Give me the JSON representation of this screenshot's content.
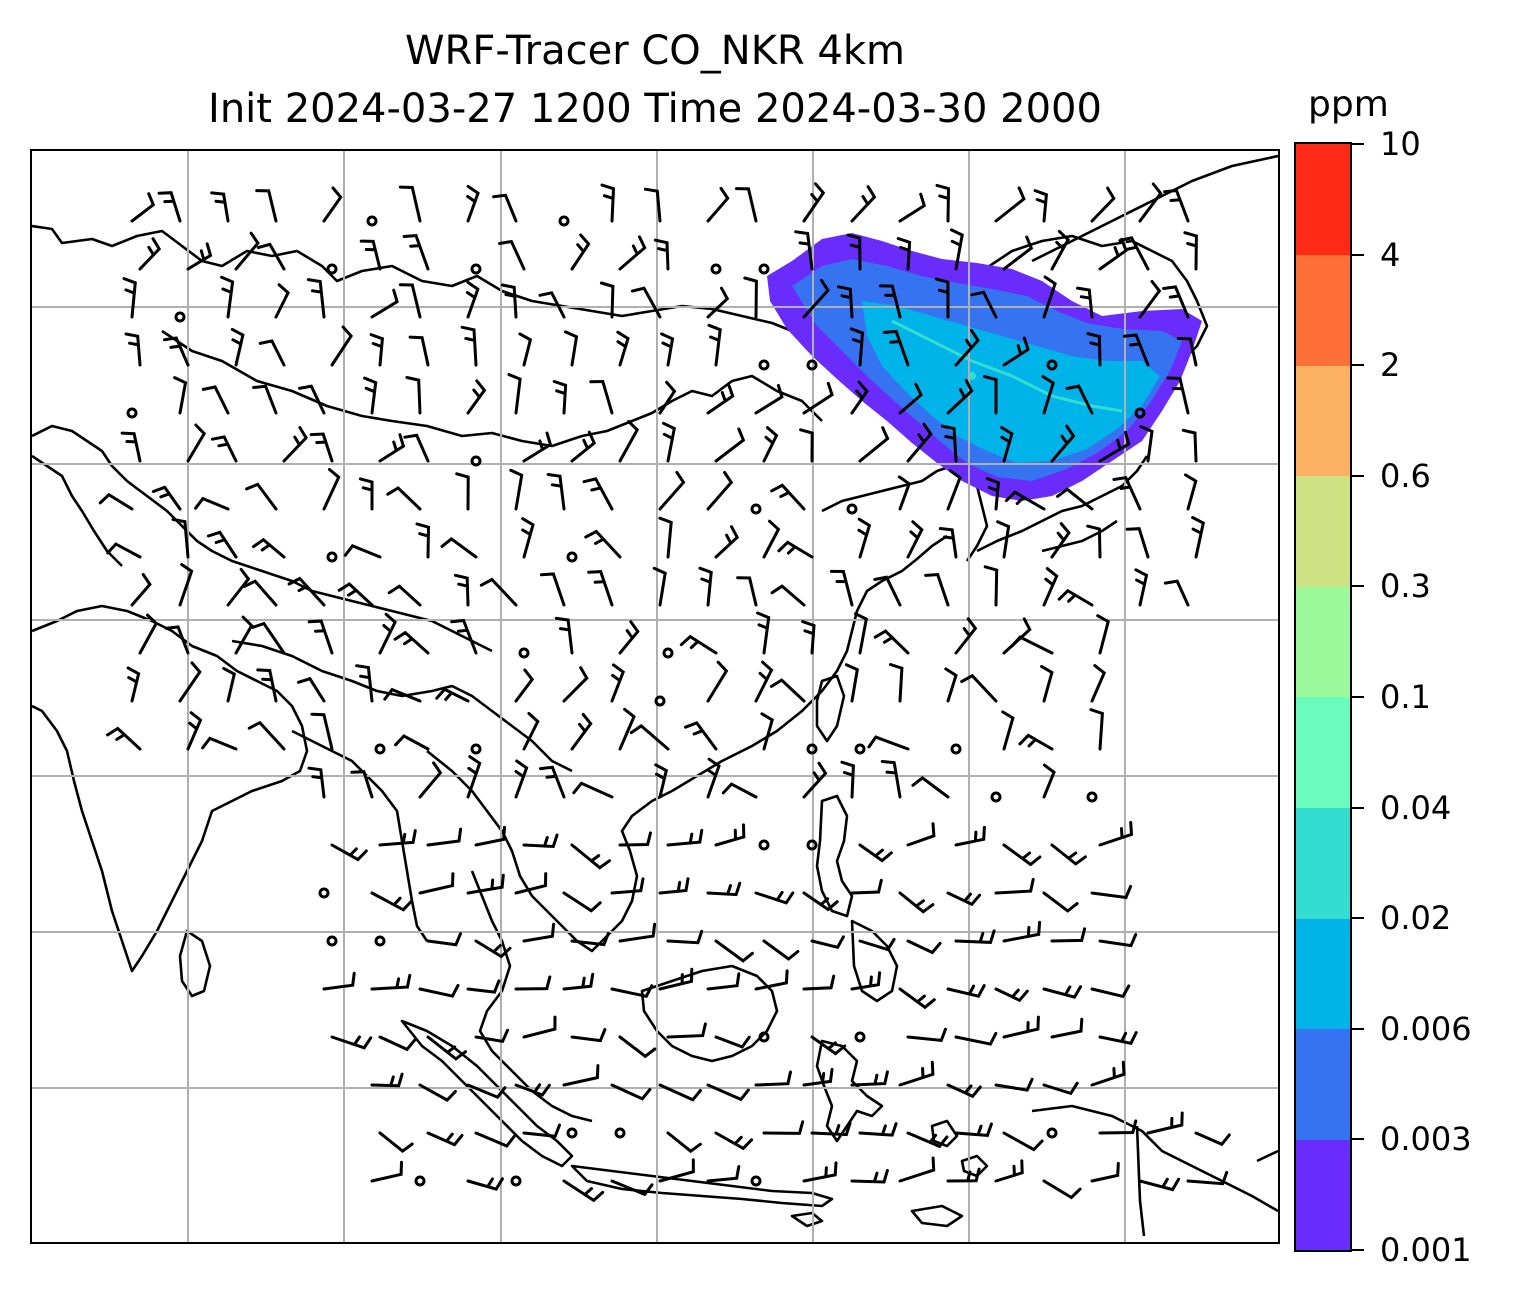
{
  "header": {
    "title_line1": "WRF-Tracer CO_NKR 4km",
    "title_line2": "Init 2024-03-27 1200 Time 2024-03-30 2000"
  },
  "colorbar": {
    "unit": "ppm",
    "levels": [
      "0.001",
      "0.003",
      "0.006",
      "0.02",
      "0.04",
      "0.1",
      "0.3",
      "0.6",
      "2",
      "4",
      "10"
    ],
    "colors": [
      "#6a2cfb",
      "#3573f0",
      "#00b4ea",
      "#33ded0",
      "#6cfbbe",
      "#9cfa9c",
      "#cfe283",
      "#fdb163",
      "#ff7038",
      "#ff2a16"
    ]
  },
  "map": {
    "grid": true,
    "plume_colors": {
      "outer": "#6a2cfb",
      "mid": "#3573f0",
      "core": "#00b4ea",
      "center": "#33ded0"
    },
    "wind_barbs": "black",
    "coastlines": "black"
  }
}
